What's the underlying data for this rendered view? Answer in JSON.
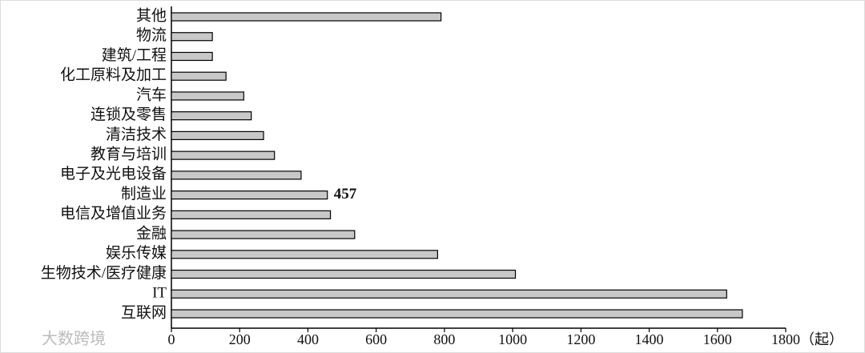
{
  "chart_data": {
    "type": "barh",
    "categories": [
      "其他",
      "物流",
      "建筑/工程",
      "化工原料及加工",
      "汽车",
      "连锁及零售",
      "清洁技术",
      "教育与培训",
      "电子及光电设备",
      "制造业",
      "电信及增值业务",
      "金融",
      "娱乐传媒",
      "生物技术/医疗健康",
      "IT",
      "互联网"
    ],
    "values": [
      790,
      120,
      120,
      160,
      212,
      234,
      270,
      302,
      380,
      457,
      466,
      537,
      780,
      1008,
      1627,
      1673
    ],
    "data_labels": [
      false,
      false,
      false,
      false,
      false,
      false,
      false,
      false,
      false,
      true,
      false,
      false,
      false,
      false,
      false,
      false
    ],
    "color": "#c8c8c8",
    "xlim": [
      0,
      1800
    ],
    "xticks": [
      0,
      200,
      400,
      600,
      800,
      1000,
      1200,
      1400,
      1600,
      1800
    ],
    "xlabel": "（起）",
    "watermark": "大数跨境"
  }
}
